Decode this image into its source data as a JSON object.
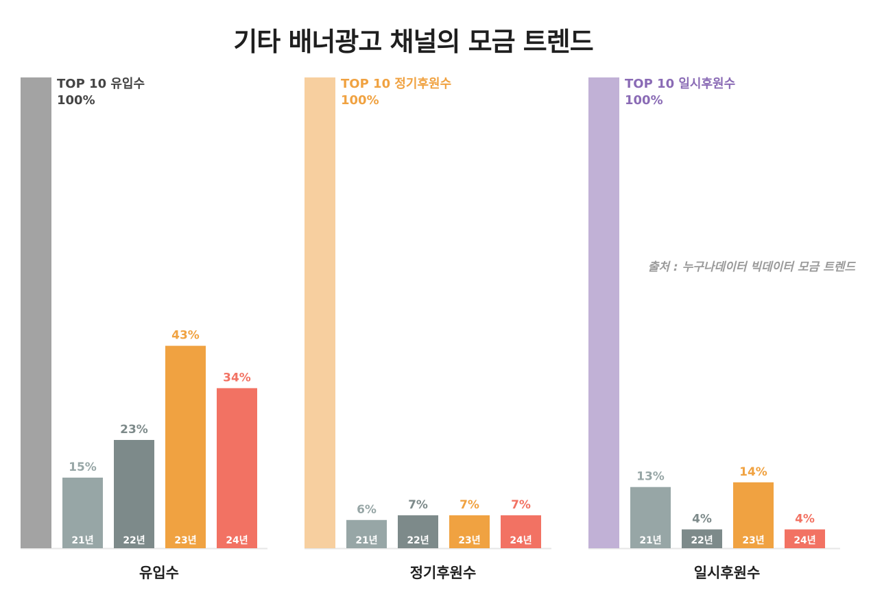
{
  "title": "기타 배너광고 채널의 모금 트렌드",
  "source": "출처 : 누구나데이터 빅데이터 모금 트렌드",
  "chart_data": {
    "type": "bar",
    "categories": [
      "21년",
      "22년",
      "23년",
      "24년"
    ],
    "ylim": [
      0,
      100
    ],
    "groups": [
      {
        "name": "유입수",
        "reference": {
          "label": "TOP 10 유입수",
          "value": 100,
          "value_label": "100%",
          "color": "#a3a3a3",
          "text_color": "#444444"
        },
        "values": [
          15,
          23,
          43,
          34
        ],
        "value_labels": [
          "15%",
          "23%",
          "43%",
          "34%"
        ]
      },
      {
        "name": "정기후원수",
        "reference": {
          "label": "TOP 10 정기후원수",
          "value": 100,
          "value_label": "100%",
          "color": "#f7cf9f",
          "text_color": "#f0a241"
        },
        "values": [
          6,
          7,
          7,
          7
        ],
        "value_labels": [
          "6%",
          "7%",
          "7%",
          "7%"
        ]
      },
      {
        "name": "일시후원수",
        "reference": {
          "label": "TOP 10 일시후원수",
          "value": 100,
          "value_label": "100%",
          "color": "#c1b1d6",
          "text_color": "#8a6bb5"
        },
        "values": [
          13,
          4,
          14,
          4
        ],
        "value_labels": [
          "13%",
          "4%",
          "14%",
          "4%"
        ]
      }
    ],
    "colors": {
      "bars": [
        "#97a6a6",
        "#7d8a8a",
        "#f0a241",
        "#f27263"
      ],
      "value_labels": [
        "#97a6a6",
        "#7d8a8a",
        "#f0a241",
        "#f27263"
      ],
      "baseline": "#e6e6e6"
    }
  }
}
